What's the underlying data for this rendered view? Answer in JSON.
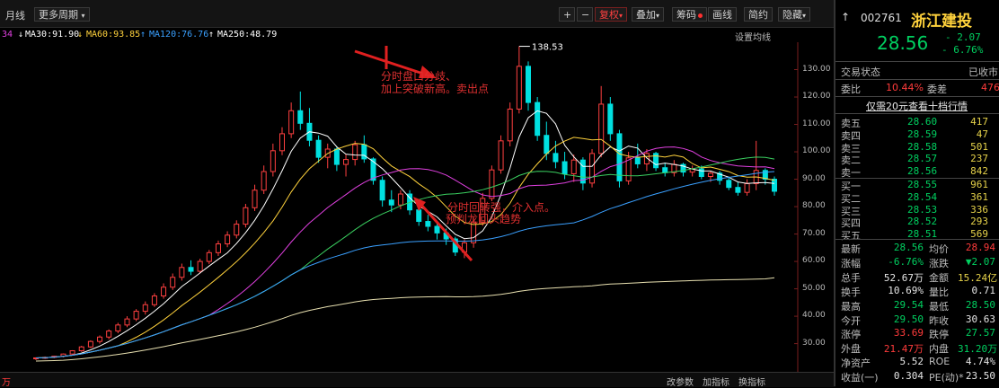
{
  "toolbar": {
    "left_items": [
      "月线",
      "更多周期"
    ],
    "right_buttons": [
      "复权",
      "叠加",
      "筹码",
      "画线",
      "简约",
      "隐藏"
    ],
    "right_symbols": [
      "+",
      "−"
    ]
  },
  "ma_bar": {
    "items": [
      {
        "label": "34",
        "color": "#e040e0"
      },
      {
        "label": "MA30:91.90",
        "color": "#ffffff"
      },
      {
        "label": "MA60:93.85",
        "color": "#ffd23c"
      },
      {
        "label": "MA120:76.76",
        "color": "#3aa0ff"
      },
      {
        "label": "MA250:48.79",
        "color": "#ffffff"
      }
    ],
    "settings_label": "设置均线"
  },
  "chart_data": {
    "type": "candlestick",
    "y_ticks": [
      130,
      120,
      110,
      100,
      90,
      80,
      70,
      60,
      50,
      40,
      30
    ],
    "y_tick_labels": [
      "130.00",
      "120.00",
      "110.00",
      "100.00",
      "90.00",
      "80.00",
      "70.00",
      "60.00",
      "50.00",
      "40.00",
      "30.00"
    ],
    "ylim": [
      22,
      140
    ],
    "peak_label": "138.53",
    "annotations": [
      {
        "text": "分时盘口分歧、",
        "line": 1
      },
      {
        "text": "加上突破新高。卖出点",
        "line": 2
      },
      {
        "text": "分时回转强，介入点。",
        "line": 3
      },
      {
        "text": "预判龙回头趋势",
        "line": 4
      }
    ],
    "candles": [
      {
        "o": 24.5,
        "h": 25,
        "l": 24,
        "c": 24.8
      },
      {
        "o": 24.8,
        "h": 25.3,
        "l": 24.4,
        "c": 25
      },
      {
        "o": 25,
        "h": 25.6,
        "l": 24.7,
        "c": 25.4
      },
      {
        "o": 25.4,
        "h": 26.4,
        "l": 25,
        "c": 26.2
      },
      {
        "o": 26.2,
        "h": 27.6,
        "l": 25.8,
        "c": 27.4
      },
      {
        "o": 27.4,
        "h": 29.2,
        "l": 27,
        "c": 28.8
      },
      {
        "o": 28.8,
        "h": 31.2,
        "l": 28.4,
        "c": 30.8
      },
      {
        "o": 30.8,
        "h": 33,
        "l": 30,
        "c": 32.4
      },
      {
        "o": 32.4,
        "h": 35.2,
        "l": 31.6,
        "c": 34.6
      },
      {
        "o": 34.6,
        "h": 37.6,
        "l": 33.8,
        "c": 36.8
      },
      {
        "o": 36.8,
        "h": 40,
        "l": 36,
        "c": 39
      },
      {
        "o": 39,
        "h": 42.6,
        "l": 38.2,
        "c": 41.8
      },
      {
        "o": 41.8,
        "h": 45.4,
        "l": 40.6,
        "c": 44.2
      },
      {
        "o": 44.2,
        "h": 48.4,
        "l": 43.4,
        "c": 47.4
      },
      {
        "o": 47.4,
        "h": 52,
        "l": 46.4,
        "c": 50.6
      },
      {
        "o": 50.6,
        "h": 55.6,
        "l": 49.6,
        "c": 54.2
      },
      {
        "o": 54.2,
        "h": 59.2,
        "l": 53,
        "c": 57.8
      },
      {
        "o": 57.8,
        "h": 60.4,
        "l": 55,
        "c": 56.4
      },
      {
        "o": 56.4,
        "h": 61,
        "l": 55.6,
        "c": 60
      },
      {
        "o": 60,
        "h": 64.2,
        "l": 59,
        "c": 63.2
      },
      {
        "o": 63.2,
        "h": 67.6,
        "l": 62,
        "c": 66.4
      },
      {
        "o": 66.4,
        "h": 71,
        "l": 65.2,
        "c": 69.6
      },
      {
        "o": 69.6,
        "h": 75,
        "l": 68.4,
        "c": 73.6
      },
      {
        "o": 73.6,
        "h": 81,
        "l": 72.4,
        "c": 79.6
      },
      {
        "o": 79.6,
        "h": 88,
        "l": 78.4,
        "c": 86
      },
      {
        "o": 86,
        "h": 95,
        "l": 84.6,
        "c": 92.8
      },
      {
        "o": 92.8,
        "h": 103,
        "l": 91,
        "c": 100.4
      },
      {
        "o": 100.4,
        "h": 109,
        "l": 98.8,
        "c": 106.6
      },
      {
        "o": 106.6,
        "h": 118,
        "l": 105,
        "c": 115
      },
      {
        "o": 115,
        "h": 122,
        "l": 108,
        "c": 110.4
      },
      {
        "o": 110.4,
        "h": 116,
        "l": 102,
        "c": 104.2
      },
      {
        "o": 104.2,
        "h": 106,
        "l": 96,
        "c": 98
      },
      {
        "o": 98,
        "h": 103,
        "l": 94,
        "c": 101
      },
      {
        "o": 101,
        "h": 102,
        "l": 93,
        "c": 95.4
      },
      {
        "o": 95.4,
        "h": 99,
        "l": 91,
        "c": 97.2
      },
      {
        "o": 97.2,
        "h": 104,
        "l": 95,
        "c": 102.6
      },
      {
        "o": 102.6,
        "h": 106,
        "l": 96,
        "c": 97.4
      },
      {
        "o": 97.4,
        "h": 98,
        "l": 88,
        "c": 89.6
      },
      {
        "o": 89.6,
        "h": 91,
        "l": 80,
        "c": 82.4
      },
      {
        "o": 82.4,
        "h": 86,
        "l": 78,
        "c": 80.6
      },
      {
        "o": 80.6,
        "h": 86,
        "l": 79,
        "c": 84.6
      },
      {
        "o": 84.6,
        "h": 86,
        "l": 77,
        "c": 78.8
      },
      {
        "o": 78.8,
        "h": 80,
        "l": 73,
        "c": 74.6
      },
      {
        "o": 74.6,
        "h": 77,
        "l": 71,
        "c": 72.8
      },
      {
        "o": 72.8,
        "h": 74,
        "l": 68,
        "c": 70.4
      },
      {
        "o": 70.4,
        "h": 72,
        "l": 66,
        "c": 68.2
      },
      {
        "o": 68.2,
        "h": 69,
        "l": 62,
        "c": 63.4
      },
      {
        "o": 63.4,
        "h": 68,
        "l": 61.2,
        "c": 66.8
      },
      {
        "o": 66.8,
        "h": 76,
        "l": 65,
        "c": 74.4
      },
      {
        "o": 74.4,
        "h": 85,
        "l": 73,
        "c": 83
      },
      {
        "o": 83,
        "h": 95,
        "l": 82,
        "c": 93.4
      },
      {
        "o": 93.4,
        "h": 106,
        "l": 92,
        "c": 104
      },
      {
        "o": 104,
        "h": 118,
        "l": 102,
        "c": 115.6
      },
      {
        "o": 115.6,
        "h": 138.5,
        "l": 114,
        "c": 131.2
      },
      {
        "o": 131.2,
        "h": 133,
        "l": 115,
        "c": 118
      },
      {
        "o": 118,
        "h": 120,
        "l": 104,
        "c": 106
      },
      {
        "o": 106,
        "h": 111,
        "l": 97,
        "c": 99.4
      },
      {
        "o": 99.4,
        "h": 104,
        "l": 94,
        "c": 96.4
      },
      {
        "o": 96.4,
        "h": 100,
        "l": 90,
        "c": 92
      },
      {
        "o": 92,
        "h": 99,
        "l": 89,
        "c": 97
      },
      {
        "o": 97,
        "h": 98,
        "l": 86,
        "c": 88.6
      },
      {
        "o": 88.6,
        "h": 101,
        "l": 87,
        "c": 99.4
      },
      {
        "o": 99.4,
        "h": 124,
        "l": 98,
        "c": 117.4
      },
      {
        "o": 117.4,
        "h": 120,
        "l": 104,
        "c": 106.6
      },
      {
        "o": 106.6,
        "h": 108,
        "l": 87,
        "c": 89.4
      },
      {
        "o": 89.4,
        "h": 100,
        "l": 88,
        "c": 97.8
      },
      {
        "o": 97.8,
        "h": 103,
        "l": 94,
        "c": 95.6
      },
      {
        "o": 95.6,
        "h": 101,
        "l": 93,
        "c": 99.4
      },
      {
        "o": 99.4,
        "h": 100,
        "l": 93,
        "c": 94.2
      },
      {
        "o": 94.2,
        "h": 96,
        "l": 91,
        "c": 92.4
      },
      {
        "o": 92.4,
        "h": 97,
        "l": 91,
        "c": 95.4
      },
      {
        "o": 95.4,
        "h": 96,
        "l": 91,
        "c": 92.6
      },
      {
        "o": 92.6,
        "h": 95,
        "l": 91,
        "c": 93.8
      },
      {
        "o": 93.8,
        "h": 95,
        "l": 90,
        "c": 91
      },
      {
        "o": 91,
        "h": 93,
        "l": 89,
        "c": 92.2
      },
      {
        "o": 92.2,
        "h": 93,
        "l": 88,
        "c": 89.6
      },
      {
        "o": 89.6,
        "h": 91,
        "l": 86,
        "c": 87
      },
      {
        "o": 87,
        "h": 89,
        "l": 84,
        "c": 85.2
      },
      {
        "o": 85.2,
        "h": 90,
        "l": 84,
        "c": 88.4
      },
      {
        "o": 88.4,
        "h": 104,
        "l": 86,
        "c": 93.2
      },
      {
        "o": 93.2,
        "h": 94,
        "l": 88,
        "c": 90
      },
      {
        "o": 90,
        "h": 91,
        "l": 84,
        "c": 85.6
      }
    ]
  },
  "bottom_bar": {
    "left": "万",
    "buttons": [
      "改参数",
      "加指标",
      "换指标"
    ]
  },
  "quote": {
    "code": "002761",
    "name": "浙江建投",
    "price": "28.56",
    "change": "- 2.07",
    "change_pct": "- 6.76%",
    "status_label": "交易状态",
    "status_value": "已收市",
    "weibi_label": "委比",
    "weibi_value": "10.44%",
    "weicha_label": "委差",
    "weicha_value": "476",
    "promo": "仅需20元查看十档行情",
    "sell": [
      {
        "label": "卖五",
        "price": "28.60",
        "vol": "417"
      },
      {
        "label": "卖四",
        "price": "28.59",
        "vol": "47"
      },
      {
        "label": "卖三",
        "price": "28.58",
        "vol": "501"
      },
      {
        "label": "卖二",
        "price": "28.57",
        "vol": "237"
      },
      {
        "label": "卖一",
        "price": "28.56",
        "vol": "842"
      }
    ],
    "buy": [
      {
        "label": "买一",
        "price": "28.55",
        "vol": "961"
      },
      {
        "label": "买二",
        "price": "28.54",
        "vol": "361"
      },
      {
        "label": "买三",
        "price": "28.53",
        "vol": "336"
      },
      {
        "label": "买四",
        "price": "28.52",
        "vol": "293"
      },
      {
        "label": "买五",
        "price": "28.51",
        "vol": "569"
      }
    ],
    "stats": [
      {
        "l1": "最新",
        "v1": "28.56",
        "c1": "green",
        "l2": "均价",
        "v2": "28.94",
        "c2": "red"
      },
      {
        "l1": "涨幅",
        "v1": "-6.76%",
        "c1": "green",
        "l2": "涨跌",
        "v2": "▼2.07",
        "c2": "green"
      },
      {
        "l1": "总手",
        "v1": "52.67万",
        "c1": "white",
        "l2": "金额",
        "v2": "15.24亿",
        "c2": "yellow"
      },
      {
        "l1": "换手",
        "v1": "10.69%",
        "c1": "white",
        "l2": "量比",
        "v2": "0.71",
        "c2": "white"
      },
      {
        "l1": "最高",
        "v1": "29.54",
        "c1": "green",
        "l2": "最低",
        "v2": "28.50",
        "c2": "green"
      },
      {
        "l1": "今开",
        "v1": "29.50",
        "c1": "green",
        "l2": "昨收",
        "v2": "30.63",
        "c2": "white"
      },
      {
        "l1": "涨停",
        "v1": "33.69",
        "c1": "red",
        "l2": "跌停",
        "v2": "27.57",
        "c2": "green"
      },
      {
        "l1": "外盘",
        "v1": "21.47万",
        "c1": "red",
        "l2": "内盘",
        "v2": "31.20万",
        "c2": "green"
      },
      {
        "l1": "净资产",
        "v1": "5.52",
        "c1": "white",
        "l2": "ROE",
        "v2": "4.74%",
        "c2": "white"
      },
      {
        "l1": "收益(一)",
        "v1": "0.304",
        "c1": "white",
        "l2": "PE(动)*",
        "v2": "23.50",
        "c2": "white"
      }
    ]
  }
}
